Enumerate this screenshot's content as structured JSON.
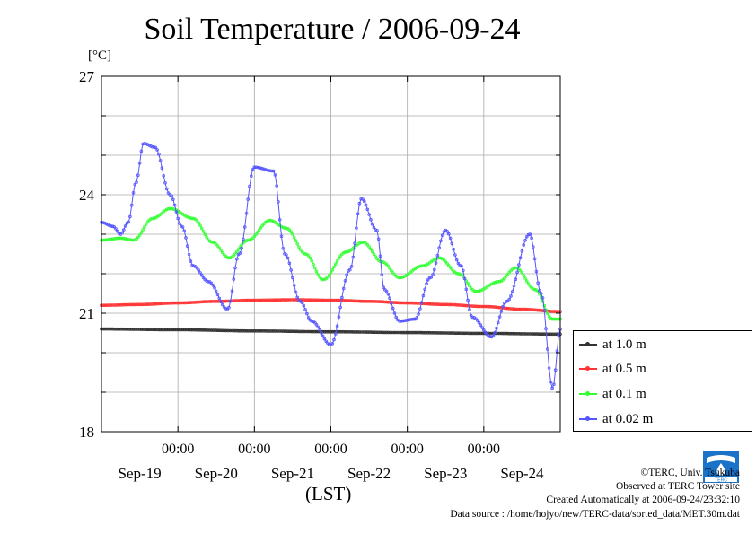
{
  "chart_data": {
    "type": "line",
    "title": "Soil Temperature / 2006-09-24",
    "ylabel": "[°C]",
    "xlabel": "(LST)",
    "ylim": [
      18,
      27
    ],
    "y_ticks": [
      18,
      21,
      24,
      27
    ],
    "x_range_days": [
      0,
      6
    ],
    "x_tick_labels": [
      "00:00",
      "00:00",
      "00:00",
      "00:00",
      "00:00"
    ],
    "x_date_labels": [
      "Sep-19",
      "Sep-20",
      "Sep-21",
      "Sep-22",
      "Sep-23",
      "Sep-24"
    ],
    "grid": true,
    "legend_position": "right",
    "series": [
      {
        "name": "at 1.0 m",
        "color": "#333333",
        "x": [
          0,
          1,
          2,
          3,
          4,
          5,
          6
        ],
        "y": [
          20.6,
          20.58,
          20.55,
          20.53,
          20.51,
          20.49,
          20.47
        ]
      },
      {
        "name": "at 0.5 m",
        "color": "#ff3333",
        "x": [
          0,
          0.5,
          1,
          1.5,
          2,
          2.5,
          3,
          3.5,
          4,
          4.5,
          5,
          5.5,
          6
        ],
        "y": [
          21.2,
          21.22,
          21.26,
          21.3,
          21.33,
          21.34,
          21.33,
          21.3,
          21.26,
          21.22,
          21.17,
          21.1,
          21.04
        ]
      },
      {
        "name": "at 0.1 m",
        "color": "#33ff33",
        "x": [
          0,
          0.25,
          0.42,
          0.67,
          0.9,
          1.2,
          1.45,
          1.67,
          1.92,
          2.2,
          2.42,
          2.67,
          2.9,
          3.2,
          3.42,
          3.67,
          3.9,
          4.2,
          4.42,
          4.67,
          4.9,
          5.2,
          5.42,
          5.67,
          5.9
        ],
        "y": [
          22.85,
          22.9,
          22.85,
          23.4,
          23.65,
          23.4,
          22.8,
          22.4,
          22.85,
          23.35,
          23.15,
          22.5,
          21.85,
          22.55,
          22.8,
          22.3,
          21.9,
          22.2,
          22.4,
          22.0,
          21.55,
          21.8,
          22.15,
          21.6,
          20.85
        ]
      },
      {
        "name": "at 0.02 m",
        "color": "#5555ff",
        "x": [
          0,
          0.15,
          0.25,
          0.35,
          0.45,
          0.55,
          0.7,
          0.9,
          1.05,
          1.2,
          1.4,
          1.65,
          1.8,
          2.0,
          2.25,
          2.4,
          2.6,
          2.75,
          3.0,
          3.25,
          3.4,
          3.6,
          3.7,
          3.9,
          4.1,
          4.3,
          4.5,
          4.7,
          4.85,
          5.1,
          5.3,
          5.6,
          5.75,
          5.9,
          6.0
        ],
        "y": [
          23.3,
          23.2,
          23.0,
          23.3,
          24.3,
          25.3,
          25.2,
          24.0,
          23.2,
          22.2,
          21.8,
          21.1,
          22.5,
          24.7,
          24.6,
          22.5,
          21.3,
          20.8,
          20.2,
          22.1,
          23.9,
          23.1,
          21.6,
          20.8,
          20.85,
          21.9,
          23.1,
          22.2,
          20.9,
          20.4,
          21.3,
          23.0,
          21.5,
          19.1,
          20.6
        ]
      }
    ]
  },
  "credits": {
    "copyright": "©TERC, Univ. Tsukuba",
    "observed": "Observed at TERC Tower site",
    "created": "Created Automatically at 2006-09-24/23:32:10",
    "source": "Data source : /home/hojyo/new/TERC-data/sorted_data/MET.30m.dat"
  }
}
